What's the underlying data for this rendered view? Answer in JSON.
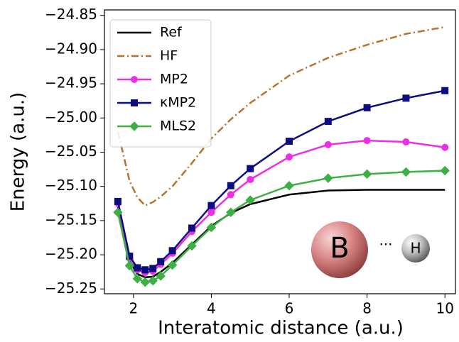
{
  "chart_data": {
    "type": "line",
    "x_label": "Interatomic distance (a.u.)",
    "y_label": "Energy (a.u.)",
    "x": [
      1.6,
      1.9,
      2.1,
      2.3,
      2.5,
      2.7,
      3.0,
      3.5,
      4.0,
      4.5,
      5.0,
      6.0,
      7.0,
      8.0,
      9.0,
      10.0
    ],
    "series": [
      {
        "name": "Ref",
        "color": "#000000",
        "linestyle": "solid",
        "values": [
          -25.13,
          -25.21,
          -25.228,
          -25.233,
          -25.232,
          -25.225,
          -25.212,
          -25.185,
          -25.158,
          -25.139,
          -25.126,
          -25.112,
          -25.106,
          -25.105,
          -25.105,
          -25.105
        ]
      },
      {
        "name": "HF",
        "color": "#b8732a",
        "linestyle": "dashdot",
        "values": [
          -25.02,
          -25.092,
          -25.116,
          -25.128,
          -25.123,
          -25.115,
          -25.1,
          -25.066,
          -25.03,
          -25.002,
          -24.978,
          -24.938,
          -24.912,
          -24.893,
          -24.877,
          -24.867
        ]
      },
      {
        "name": "MP2",
        "color": "#ee2ee6",
        "linestyle": "solid",
        "marker": "circle",
        "values": [
          -25.125,
          -25.205,
          -25.222,
          -25.226,
          -25.224,
          -25.214,
          -25.198,
          -25.166,
          -25.138,
          -25.112,
          -25.09,
          -25.057,
          -25.039,
          -25.033,
          -25.035,
          -25.043
        ]
      },
      {
        "name": "κMP2",
        "color": "#0d0d80",
        "linestyle": "solid",
        "marker": "square",
        "values": [
          -25.122,
          -25.202,
          -25.219,
          -25.222,
          -25.22,
          -25.21,
          -25.194,
          -25.161,
          -25.128,
          -25.099,
          -25.074,
          -25.034,
          -25.005,
          -24.985,
          -24.971,
          -24.96
        ]
      },
      {
        "name": "MLS2",
        "color": "#3cb043",
        "linestyle": "solid",
        "marker": "diamond",
        "values": [
          -25.138,
          -25.216,
          -25.235,
          -25.24,
          -25.238,
          -25.231,
          -25.215,
          -25.187,
          -25.16,
          -25.138,
          -25.12,
          -25.099,
          -25.088,
          -25.082,
          -25.079,
          -25.077
        ]
      }
    ],
    "xlim": [
      1.255,
      10.27
    ],
    "ylim": [
      -25.257,
      -24.842
    ],
    "xticks": [
      2,
      4,
      6,
      8,
      10
    ],
    "yticks": [
      {
        "value": -24.85,
        "label": "−24.85"
      },
      {
        "value": -24.9,
        "label": "−24.90"
      },
      {
        "value": -24.95,
        "label": "−24.95"
      },
      {
        "value": -25.0,
        "label": "−25.00"
      },
      {
        "value": -25.05,
        "label": "−25.05"
      },
      {
        "value": -25.1,
        "label": "−25.10"
      },
      {
        "value": -25.15,
        "label": "−25.15"
      },
      {
        "value": -25.2,
        "label": "−25.20"
      },
      {
        "value": -25.25,
        "label": "−25.25"
      }
    ],
    "legend": "upper left",
    "inset": {
      "atom_a": "B",
      "bond": "···",
      "atom_b": "H"
    }
  }
}
